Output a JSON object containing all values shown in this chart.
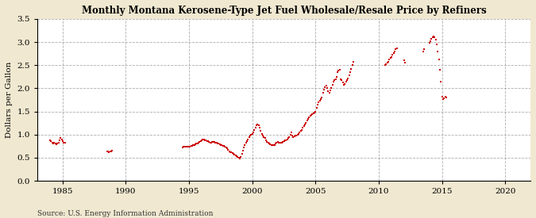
{
  "title": "Monthly Montana Kerosene-Type Jet Fuel Wholesale/Resale Price by Refiners",
  "ylabel": "Dollars per Gallon",
  "source": "Source: U.S. Energy Information Administration",
  "fig_color": "#f0e8d0",
  "plot_bg_color": "#ffffff",
  "dot_color": "#cc0000",
  "xlim": [
    1983,
    2022
  ],
  "ylim": [
    0.0,
    3.5
  ],
  "xticks": [
    1985,
    1990,
    1995,
    2000,
    2005,
    2010,
    2015,
    2020
  ],
  "yticks": [
    0.0,
    0.5,
    1.0,
    1.5,
    2.0,
    2.5,
    3.0,
    3.5
  ],
  "data": [
    [
      1984.0,
      0.88
    ],
    [
      1984.08,
      0.85
    ],
    [
      1984.17,
      0.82
    ],
    [
      1984.25,
      0.8
    ],
    [
      1984.33,
      0.82
    ],
    [
      1984.42,
      0.8
    ],
    [
      1984.5,
      0.79
    ],
    [
      1984.58,
      0.8
    ],
    [
      1984.67,
      0.83
    ],
    [
      1984.75,
      0.88
    ],
    [
      1984.83,
      0.92
    ],
    [
      1984.92,
      0.9
    ],
    [
      1985.0,
      0.86
    ],
    [
      1985.08,
      0.83
    ],
    [
      1985.17,
      0.82
    ],
    [
      1988.5,
      0.64
    ],
    [
      1988.58,
      0.63
    ],
    [
      1988.67,
      0.62
    ],
    [
      1988.75,
      0.63
    ],
    [
      1988.83,
      0.64
    ],
    [
      1988.92,
      0.65
    ],
    [
      1994.5,
      0.72
    ],
    [
      1994.58,
      0.73
    ],
    [
      1994.67,
      0.73
    ],
    [
      1994.75,
      0.73
    ],
    [
      1994.83,
      0.73
    ],
    [
      1994.92,
      0.73
    ],
    [
      1995.0,
      0.73
    ],
    [
      1995.08,
      0.74
    ],
    [
      1995.17,
      0.75
    ],
    [
      1995.25,
      0.76
    ],
    [
      1995.33,
      0.77
    ],
    [
      1995.42,
      0.78
    ],
    [
      1995.5,
      0.79
    ],
    [
      1995.58,
      0.8
    ],
    [
      1995.67,
      0.81
    ],
    [
      1995.75,
      0.82
    ],
    [
      1995.83,
      0.84
    ],
    [
      1995.92,
      0.86
    ],
    [
      1996.0,
      0.88
    ],
    [
      1996.08,
      0.89
    ],
    [
      1996.17,
      0.89
    ],
    [
      1996.25,
      0.88
    ],
    [
      1996.33,
      0.87
    ],
    [
      1996.42,
      0.86
    ],
    [
      1996.5,
      0.85
    ],
    [
      1996.58,
      0.84
    ],
    [
      1996.67,
      0.83
    ],
    [
      1996.75,
      0.83
    ],
    [
      1996.83,
      0.84
    ],
    [
      1996.92,
      0.84
    ],
    [
      1997.0,
      0.84
    ],
    [
      1997.08,
      0.83
    ],
    [
      1997.17,
      0.82
    ],
    [
      1997.25,
      0.81
    ],
    [
      1997.33,
      0.8
    ],
    [
      1997.42,
      0.79
    ],
    [
      1997.5,
      0.78
    ],
    [
      1997.58,
      0.77
    ],
    [
      1997.67,
      0.76
    ],
    [
      1997.75,
      0.75
    ],
    [
      1997.83,
      0.74
    ],
    [
      1997.92,
      0.72
    ],
    [
      1998.0,
      0.7
    ],
    [
      1998.08,
      0.67
    ],
    [
      1998.17,
      0.64
    ],
    [
      1998.25,
      0.62
    ],
    [
      1998.33,
      0.61
    ],
    [
      1998.42,
      0.6
    ],
    [
      1998.5,
      0.59
    ],
    [
      1998.58,
      0.57
    ],
    [
      1998.67,
      0.55
    ],
    [
      1998.75,
      0.53
    ],
    [
      1998.83,
      0.51
    ],
    [
      1998.92,
      0.49
    ],
    [
      1999.0,
      0.48
    ],
    [
      1999.08,
      0.52
    ],
    [
      1999.17,
      0.58
    ],
    [
      1999.25,
      0.65
    ],
    [
      1999.33,
      0.72
    ],
    [
      1999.42,
      0.78
    ],
    [
      1999.5,
      0.82
    ],
    [
      1999.58,
      0.86
    ],
    [
      1999.67,
      0.9
    ],
    [
      1999.75,
      0.94
    ],
    [
      1999.83,
      0.98
    ],
    [
      1999.92,
      1.0
    ],
    [
      2000.0,
      1.02
    ],
    [
      2000.08,
      1.05
    ],
    [
      2000.17,
      1.1
    ],
    [
      2000.25,
      1.15
    ],
    [
      2000.33,
      1.2
    ],
    [
      2000.42,
      1.22
    ],
    [
      2000.5,
      1.2
    ],
    [
      2000.58,
      1.15
    ],
    [
      2000.67,
      1.08
    ],
    [
      2000.75,
      1.02
    ],
    [
      2000.83,
      0.98
    ],
    [
      2000.92,
      0.95
    ],
    [
      2001.0,
      0.92
    ],
    [
      2001.08,
      0.88
    ],
    [
      2001.17,
      0.84
    ],
    [
      2001.25,
      0.82
    ],
    [
      2001.33,
      0.8
    ],
    [
      2001.42,
      0.79
    ],
    [
      2001.5,
      0.78
    ],
    [
      2001.58,
      0.77
    ],
    [
      2001.67,
      0.77
    ],
    [
      2001.75,
      0.78
    ],
    [
      2001.83,
      0.8
    ],
    [
      2001.92,
      0.82
    ],
    [
      2002.0,
      0.84
    ],
    [
      2002.08,
      0.83
    ],
    [
      2002.17,
      0.82
    ],
    [
      2002.25,
      0.82
    ],
    [
      2002.33,
      0.83
    ],
    [
      2002.42,
      0.84
    ],
    [
      2002.5,
      0.86
    ],
    [
      2002.58,
      0.87
    ],
    [
      2002.67,
      0.88
    ],
    [
      2002.75,
      0.9
    ],
    [
      2002.83,
      0.92
    ],
    [
      2002.92,
      0.95
    ],
    [
      2003.0,
      1.0
    ],
    [
      2003.08,
      1.05
    ],
    [
      2003.17,
      0.98
    ],
    [
      2003.25,
      0.95
    ],
    [
      2003.33,
      0.96
    ],
    [
      2003.42,
      0.97
    ],
    [
      2003.5,
      0.98
    ],
    [
      2003.58,
      1.0
    ],
    [
      2003.67,
      1.02
    ],
    [
      2003.75,
      1.05
    ],
    [
      2003.83,
      1.08
    ],
    [
      2003.92,
      1.1
    ],
    [
      2004.0,
      1.15
    ],
    [
      2004.08,
      1.18
    ],
    [
      2004.17,
      1.22
    ],
    [
      2004.25,
      1.26
    ],
    [
      2004.33,
      1.3
    ],
    [
      2004.42,
      1.34
    ],
    [
      2004.5,
      1.38
    ],
    [
      2004.58,
      1.4
    ],
    [
      2004.67,
      1.42
    ],
    [
      2004.75,
      1.44
    ],
    [
      2004.83,
      1.46
    ],
    [
      2004.92,
      1.48
    ],
    [
      2005.0,
      1.5
    ],
    [
      2005.08,
      1.58
    ],
    [
      2005.17,
      1.65
    ],
    [
      2005.25,
      1.7
    ],
    [
      2005.33,
      1.74
    ],
    [
      2005.42,
      1.77
    ],
    [
      2005.5,
      1.8
    ],
    [
      2005.58,
      1.9
    ],
    [
      2005.67,
      1.97
    ],
    [
      2005.75,
      2.02
    ],
    [
      2005.83,
      2.05
    ],
    [
      2005.92,
      2.0
    ],
    [
      2006.0,
      1.93
    ],
    [
      2006.08,
      1.9
    ],
    [
      2006.17,
      1.95
    ],
    [
      2006.25,
      2.0
    ],
    [
      2006.33,
      2.08
    ],
    [
      2006.42,
      2.15
    ],
    [
      2006.5,
      2.18
    ],
    [
      2006.58,
      2.2
    ],
    [
      2006.67,
      2.25
    ],
    [
      2006.75,
      2.35
    ],
    [
      2006.83,
      2.38
    ],
    [
      2006.92,
      2.4
    ],
    [
      2007.0,
      2.2
    ],
    [
      2007.08,
      2.18
    ],
    [
      2007.17,
      2.12
    ],
    [
      2007.25,
      2.08
    ],
    [
      2007.33,
      2.1
    ],
    [
      2007.42,
      2.14
    ],
    [
      2007.5,
      2.18
    ],
    [
      2007.58,
      2.22
    ],
    [
      2007.67,
      2.28
    ],
    [
      2007.75,
      2.35
    ],
    [
      2007.83,
      2.42
    ],
    [
      2007.92,
      2.5
    ],
    [
      2008.0,
      2.58
    ],
    [
      2010.5,
      2.5
    ],
    [
      2010.58,
      2.52
    ],
    [
      2010.67,
      2.55
    ],
    [
      2010.75,
      2.58
    ],
    [
      2010.83,
      2.62
    ],
    [
      2010.92,
      2.65
    ],
    [
      2011.0,
      2.68
    ],
    [
      2011.08,
      2.72
    ],
    [
      2011.17,
      2.76
    ],
    [
      2011.25,
      2.8
    ],
    [
      2011.33,
      2.84
    ],
    [
      2011.42,
      2.87
    ],
    [
      2012.0,
      2.6
    ],
    [
      2012.08,
      2.56
    ],
    [
      2013.5,
      2.8
    ],
    [
      2013.58,
      2.84
    ],
    [
      2014.0,
      2.98
    ],
    [
      2014.08,
      3.02
    ],
    [
      2014.17,
      3.07
    ],
    [
      2014.25,
      3.1
    ],
    [
      2014.33,
      3.12
    ],
    [
      2014.42,
      3.1
    ],
    [
      2014.5,
      3.05
    ],
    [
      2014.58,
      2.95
    ],
    [
      2014.67,
      2.8
    ],
    [
      2014.75,
      2.62
    ],
    [
      2014.83,
      2.4
    ],
    [
      2014.92,
      2.15
    ],
    [
      2015.0,
      1.82
    ],
    [
      2015.08,
      1.77
    ],
    [
      2015.17,
      1.78
    ],
    [
      2015.25,
      1.82
    ],
    [
      2015.33,
      1.8
    ]
  ]
}
